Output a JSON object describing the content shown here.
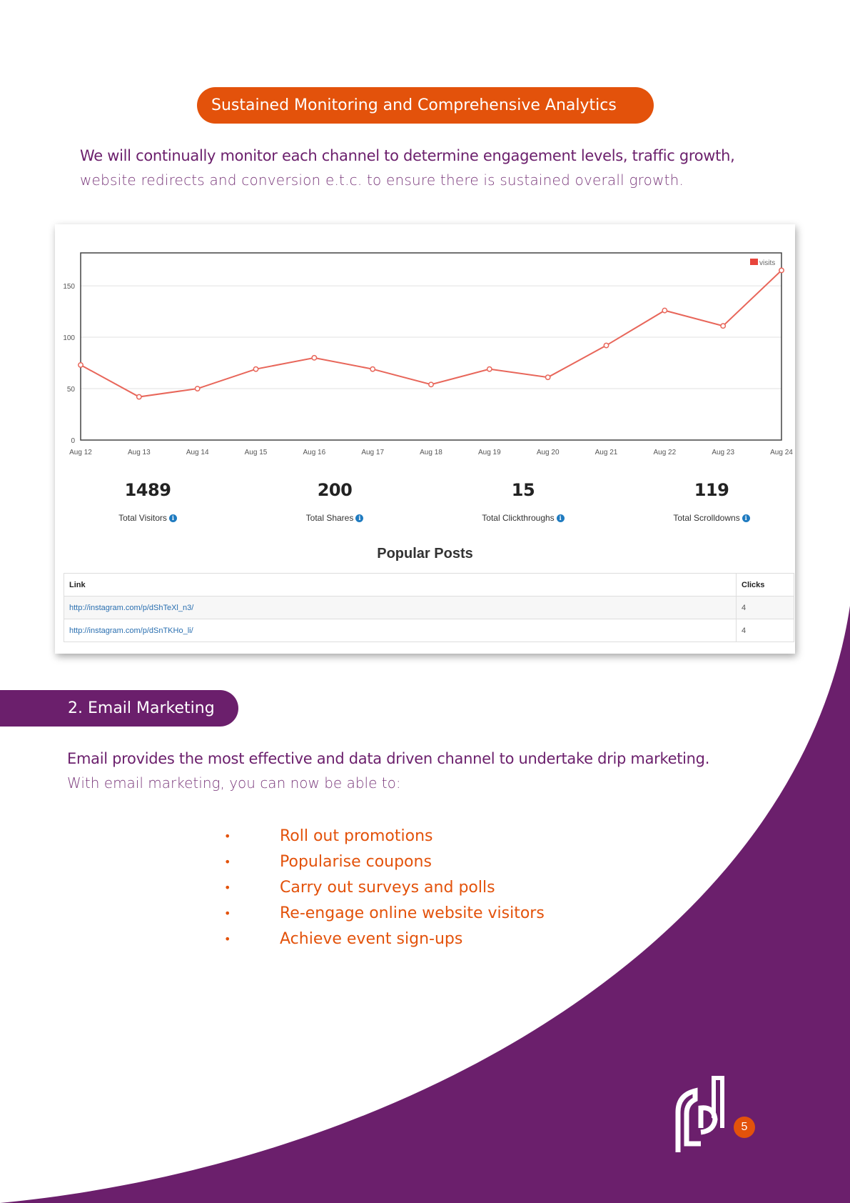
{
  "header": {
    "title": "Sustained Monitoring and Comprehensive Analytics"
  },
  "intro": {
    "line1": "We will continually monitor each channel to determine engagement levels, traffic growth,",
    "line2": "website redirects and conversion e.t.c. to ensure there is sustained overall growth."
  },
  "chart_data": {
    "type": "line",
    "categories": [
      "Aug 12",
      "Aug 13",
      "Aug 14",
      "Aug 15",
      "Aug 16",
      "Aug 17",
      "Aug 18",
      "Aug 19",
      "Aug 20",
      "Aug 21",
      "Aug 22",
      "Aug 23",
      "Aug 24"
    ],
    "series": [
      {
        "name": "visits",
        "values": [
          73,
          42,
          50,
          69,
          80,
          69,
          54,
          69,
          61,
          92,
          126,
          111,
          165
        ]
      }
    ],
    "yticks": [
      "0",
      "50",
      "100",
      "150"
    ],
    "ylim": [
      0,
      182
    ],
    "legend": "top-right",
    "grid": true,
    "color": "#e8665a"
  },
  "stats": [
    {
      "value": "1489",
      "label": "Total Visitors"
    },
    {
      "value": "200",
      "label": "Total Shares"
    },
    {
      "value": "15",
      "label": "Total Clickthroughs"
    },
    {
      "value": "119",
      "label": "Total Scrolldowns"
    }
  ],
  "info_icon": "info-icon",
  "popular_posts": {
    "title": "Popular Posts",
    "columns": [
      "Link",
      "Clicks"
    ],
    "rows": [
      {
        "link": "http://instagram.com/p/dShTeXl_n3/",
        "clicks": "4"
      },
      {
        "link": "http://instagram.com/p/dSnTKHo_li/",
        "clicks": "4"
      }
    ]
  },
  "email": {
    "heading": "2. Email Marketing",
    "line1": "Email provides the most effective and data driven channel to undertake drip marketing.",
    "line2": "With email marketing, you can now be able to:",
    "bullet_symbol": "•",
    "bullets": [
      "Roll out promotions",
      "Popularise coupons",
      "Carry out surveys and polls",
      "Re-engage online website visitors",
      "Achieve event sign-ups"
    ]
  },
  "footer": {
    "page_number": "5",
    "logo_icon": "brand-logo-icon"
  },
  "colors": {
    "orange": "#e3520b",
    "purple": "#6b1f6c"
  }
}
